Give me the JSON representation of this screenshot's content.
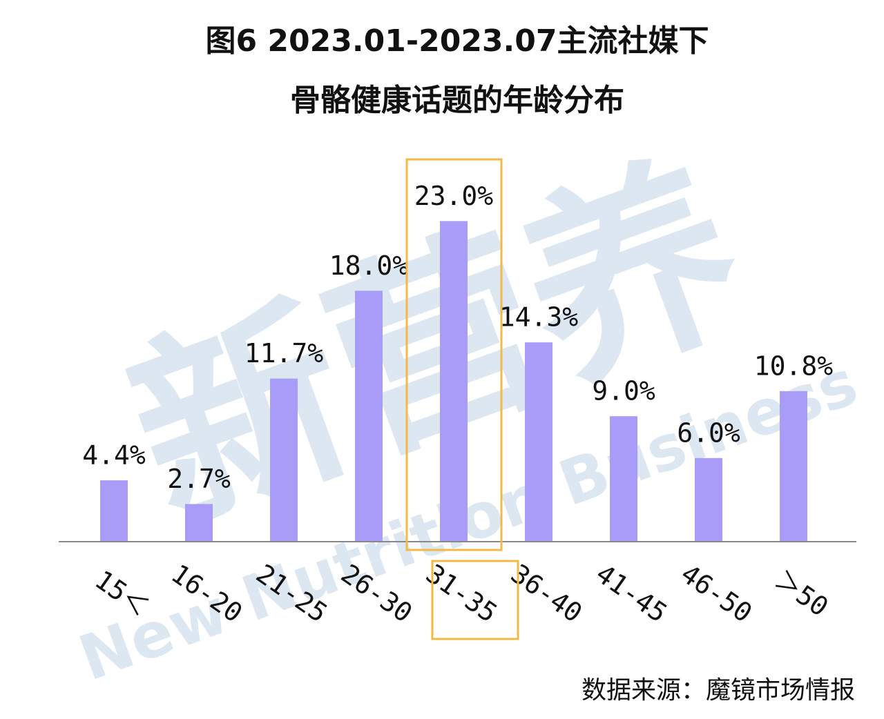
{
  "chart_data": {
    "type": "bar",
    "title": [
      "图6 2023.01-2023.07主流社媒下",
      "骨骼健康话题的年龄分布"
    ],
    "categories": [
      "15＜",
      "16-20",
      "21-25",
      "26-30",
      "31-35",
      "36-40",
      "41-45",
      "46-50",
      "＞50"
    ],
    "values": [
      4.4,
      2.7,
      11.7,
      18.0,
      23.0,
      14.3,
      9.0,
      6.0,
      10.8
    ],
    "value_labels": [
      "4.4%",
      "2.7%",
      "11.7%",
      "18.0%",
      "23.0%",
      "14.3%",
      "9.0%",
      "6.0%",
      "10.8%"
    ],
    "color": "#a99bf8",
    "source": "数据来源：魔镜市场情报",
    "watermark": [
      "新营养",
      "New Nutrition Business"
    ]
  }
}
